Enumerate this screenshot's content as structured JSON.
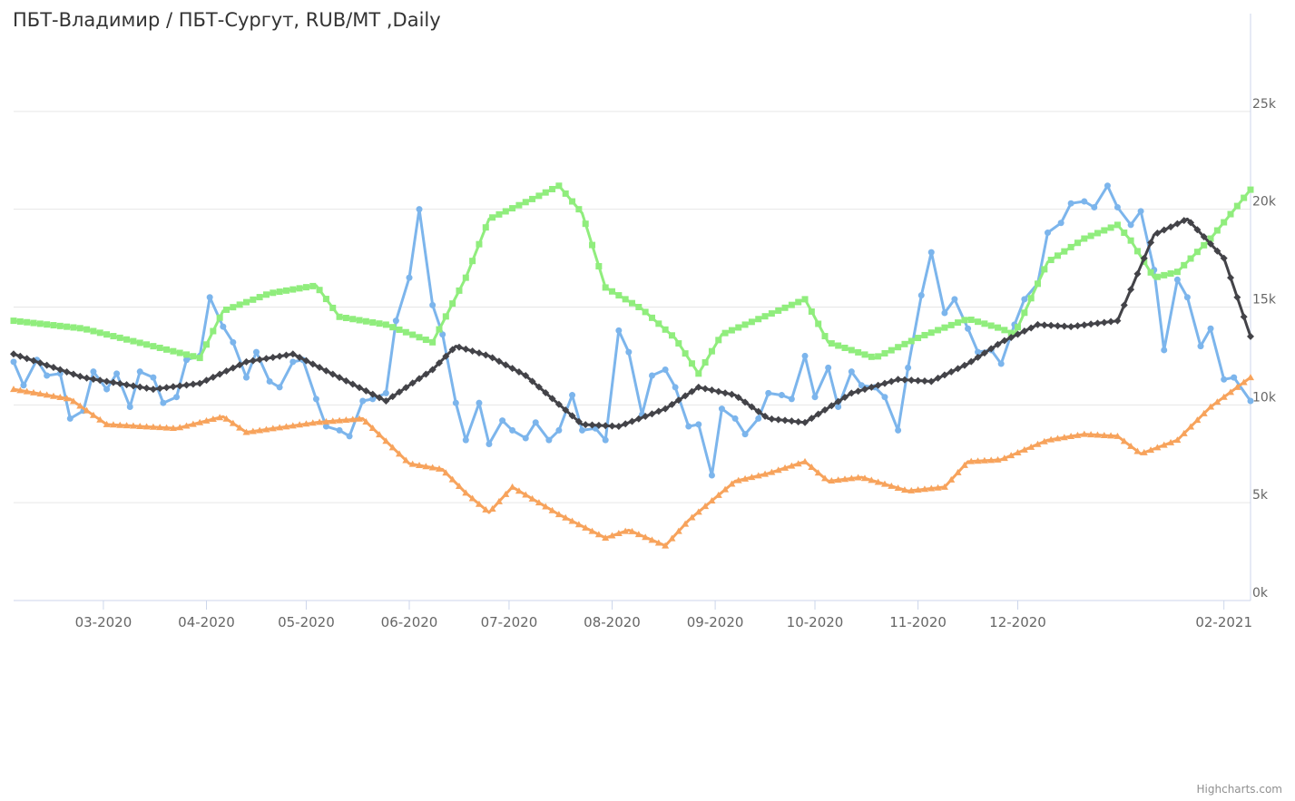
{
  "chart_data": {
    "type": "line",
    "title": "ПБТ-Владимир / ПБТ-Сургут, RUB/MT ,Daily",
    "xlabel": "",
    "ylabel": "",
    "ylim": [
      0,
      30000
    ],
    "y_ticks": [
      "0k",
      "5k",
      "10k",
      "15k",
      "20k",
      "25k"
    ],
    "y_axis_position": "right",
    "grid": true,
    "legend": "none",
    "x_range": [
      "2020-02-03",
      "2021-02-09"
    ],
    "x_ticks": [
      "03-2020",
      "04-2020",
      "05-2020",
      "06-2020",
      "07-2020",
      "08-2020",
      "09-2020",
      "10-2020",
      "11-2020",
      "12-2020",
      "02-2021"
    ],
    "series": [
      {
        "color": "#7cb5ec",
        "marker": "circle",
        "points": [
          [
            "2020-02-03",
            12200
          ],
          [
            "2020-02-06",
            11000
          ],
          [
            "2020-02-10",
            12300
          ],
          [
            "2020-02-13",
            11500
          ],
          [
            "2020-02-17",
            11600
          ],
          [
            "2020-02-20",
            9300
          ],
          [
            "2020-02-24",
            9700
          ],
          [
            "2020-02-27",
            11700
          ],
          [
            "2020-03-02",
            10800
          ],
          [
            "2020-03-05",
            11600
          ],
          [
            "2020-03-09",
            9900
          ],
          [
            "2020-03-12",
            11700
          ],
          [
            "2020-03-16",
            11400
          ],
          [
            "2020-03-19",
            10100
          ],
          [
            "2020-03-23",
            10400
          ],
          [
            "2020-03-26",
            12300
          ],
          [
            "2020-03-30",
            12500
          ],
          [
            "2020-04-02",
            15500
          ],
          [
            "2020-04-06",
            14000
          ],
          [
            "2020-04-09",
            13200
          ],
          [
            "2020-04-13",
            11400
          ],
          [
            "2020-04-16",
            12700
          ],
          [
            "2020-04-20",
            11200
          ],
          [
            "2020-04-23",
            10900
          ],
          [
            "2020-04-27",
            12200
          ],
          [
            "2020-04-30",
            12300
          ],
          [
            "2020-05-04",
            10300
          ],
          [
            "2020-05-07",
            8900
          ],
          [
            "2020-05-11",
            8700
          ],
          [
            "2020-05-14",
            8400
          ],
          [
            "2020-05-18",
            10200
          ],
          [
            "2020-05-21",
            10300
          ],
          [
            "2020-05-25",
            10600
          ],
          [
            "2020-05-28",
            14300
          ],
          [
            "2020-06-01",
            16500
          ],
          [
            "2020-06-04",
            20000
          ],
          [
            "2020-06-08",
            15100
          ],
          [
            "2020-06-11",
            13600
          ],
          [
            "2020-06-15",
            10100
          ],
          [
            "2020-06-18",
            8200
          ],
          [
            "2020-06-22",
            10100
          ],
          [
            "2020-06-25",
            8000
          ],
          [
            "2020-06-29",
            9200
          ],
          [
            "2020-07-02",
            8700
          ],
          [
            "2020-07-06",
            8300
          ],
          [
            "2020-07-09",
            9100
          ],
          [
            "2020-07-13",
            8200
          ],
          [
            "2020-07-16",
            8700
          ],
          [
            "2020-07-20",
            10500
          ],
          [
            "2020-07-23",
            8700
          ],
          [
            "2020-07-27",
            8800
          ],
          [
            "2020-07-30",
            8200
          ],
          [
            "2020-08-03",
            13800
          ],
          [
            "2020-08-06",
            12700
          ],
          [
            "2020-08-10",
            9500
          ],
          [
            "2020-08-13",
            11500
          ],
          [
            "2020-08-17",
            11800
          ],
          [
            "2020-08-20",
            10900
          ],
          [
            "2020-08-24",
            8900
          ],
          [
            "2020-08-27",
            9000
          ],
          [
            "2020-08-31",
            6400
          ],
          [
            "2020-09-03",
            9800
          ],
          [
            "2020-09-07",
            9300
          ],
          [
            "2020-09-10",
            8500
          ],
          [
            "2020-09-14",
            9300
          ],
          [
            "2020-09-17",
            10600
          ],
          [
            "2020-09-21",
            10500
          ],
          [
            "2020-09-24",
            10300
          ],
          [
            "2020-09-28",
            12500
          ],
          [
            "2020-10-01",
            10400
          ],
          [
            "2020-10-05",
            11900
          ],
          [
            "2020-10-08",
            9900
          ],
          [
            "2020-10-12",
            11700
          ],
          [
            "2020-10-15",
            11000
          ],
          [
            "2020-10-19",
            10900
          ],
          [
            "2020-10-22",
            10400
          ],
          [
            "2020-10-26",
            8700
          ],
          [
            "2020-10-29",
            11900
          ],
          [
            "2020-11-02",
            15600
          ],
          [
            "2020-11-05",
            17800
          ],
          [
            "2020-11-09",
            14700
          ],
          [
            "2020-11-12",
            15400
          ],
          [
            "2020-11-16",
            13900
          ],
          [
            "2020-11-19",
            12700
          ],
          [
            "2020-11-23",
            12800
          ],
          [
            "2020-11-26",
            12100
          ],
          [
            "2020-11-30",
            14100
          ],
          [
            "2020-12-03",
            15400
          ],
          [
            "2020-12-07",
            16200
          ],
          [
            "2020-12-10",
            18800
          ],
          [
            "2020-12-14",
            19300
          ],
          [
            "2020-12-17",
            20300
          ],
          [
            "2020-12-21",
            20400
          ],
          [
            "2020-12-24",
            20100
          ],
          [
            "2020-12-28",
            21200
          ],
          [
            "2020-12-31",
            20100
          ],
          [
            "2021-01-04",
            19200
          ],
          [
            "2021-01-07",
            19900
          ],
          [
            "2021-01-11",
            16900
          ],
          [
            "2021-01-14",
            12800
          ],
          [
            "2021-01-18",
            16400
          ],
          [
            "2021-01-21",
            15500
          ],
          [
            "2021-01-25",
            13000
          ],
          [
            "2021-01-28",
            13900
          ],
          [
            "2021-02-01",
            11300
          ],
          [
            "2021-02-04",
            11400
          ],
          [
            "2021-02-09",
            10200
          ]
        ]
      },
      {
        "color": "#90ed7d",
        "marker": "square",
        "points": [
          [
            "2020-02-03",
            14300
          ],
          [
            "2020-02-24",
            13900
          ],
          [
            "2020-03-16",
            13000
          ],
          [
            "2020-03-30",
            12400
          ],
          [
            "2020-04-06",
            14800
          ],
          [
            "2020-04-20",
            15700
          ],
          [
            "2020-05-04",
            16100
          ],
          [
            "2020-05-11",
            14500
          ],
          [
            "2020-05-25",
            14100
          ],
          [
            "2020-06-08",
            13200
          ],
          [
            "2020-06-18",
            16500
          ],
          [
            "2020-06-25",
            19500
          ],
          [
            "2020-07-09",
            20600
          ],
          [
            "2020-07-16",
            21200
          ],
          [
            "2020-07-23",
            19800
          ],
          [
            "2020-07-30",
            16000
          ],
          [
            "2020-08-10",
            14900
          ],
          [
            "2020-08-20",
            13400
          ],
          [
            "2020-08-27",
            11600
          ],
          [
            "2020-09-03",
            13600
          ],
          [
            "2020-09-17",
            14600
          ],
          [
            "2020-09-28",
            15400
          ],
          [
            "2020-10-05",
            13200
          ],
          [
            "2020-10-19",
            12400
          ],
          [
            "2020-11-02",
            13500
          ],
          [
            "2020-11-16",
            14400
          ],
          [
            "2020-11-26",
            13900
          ],
          [
            "2020-11-30",
            13600
          ],
          [
            "2020-12-10",
            17300
          ],
          [
            "2020-12-21",
            18500
          ],
          [
            "2020-12-31",
            19200
          ],
          [
            "2021-01-04",
            18400
          ],
          [
            "2021-01-11",
            16500
          ],
          [
            "2021-01-18",
            16800
          ],
          [
            "2021-01-28",
            18500
          ],
          [
            "2021-02-09",
            21000
          ]
        ]
      },
      {
        "color": "#f7a35c",
        "marker": "triangle",
        "points": [
          [
            "2020-02-03",
            10800
          ],
          [
            "2020-02-20",
            10300
          ],
          [
            "2020-03-02",
            9000
          ],
          [
            "2020-03-23",
            8800
          ],
          [
            "2020-04-06",
            9400
          ],
          [
            "2020-04-13",
            8600
          ],
          [
            "2020-05-04",
            9100
          ],
          [
            "2020-05-18",
            9300
          ],
          [
            "2020-06-01",
            7000
          ],
          [
            "2020-06-11",
            6700
          ],
          [
            "2020-06-18",
            5500
          ],
          [
            "2020-06-25",
            4500
          ],
          [
            "2020-07-02",
            5800
          ],
          [
            "2020-07-16",
            4400
          ],
          [
            "2020-07-30",
            3200
          ],
          [
            "2020-08-06",
            3600
          ],
          [
            "2020-08-17",
            2800
          ],
          [
            "2020-08-24",
            4100
          ],
          [
            "2020-09-07",
            6100
          ],
          [
            "2020-09-17",
            6500
          ],
          [
            "2020-09-28",
            7100
          ],
          [
            "2020-10-05",
            6100
          ],
          [
            "2020-10-15",
            6300
          ],
          [
            "2020-10-29",
            5600
          ],
          [
            "2020-11-09",
            5800
          ],
          [
            "2020-11-16",
            7100
          ],
          [
            "2020-11-26",
            7200
          ],
          [
            "2020-12-10",
            8200
          ],
          [
            "2020-12-21",
            8500
          ],
          [
            "2020-12-31",
            8400
          ],
          [
            "2021-01-07",
            7500
          ],
          [
            "2021-01-18",
            8200
          ],
          [
            "2021-01-28",
            9900
          ],
          [
            "2021-02-09",
            11400
          ]
        ]
      },
      {
        "color": "#434348",
        "marker": "diamond",
        "points": [
          [
            "2020-02-03",
            12600
          ],
          [
            "2020-02-24",
            11400
          ],
          [
            "2020-03-16",
            10800
          ],
          [
            "2020-03-30",
            11100
          ],
          [
            "2020-04-13",
            12200
          ],
          [
            "2020-04-27",
            12600
          ],
          [
            "2020-05-11",
            11400
          ],
          [
            "2020-05-25",
            10200
          ],
          [
            "2020-06-08",
            11800
          ],
          [
            "2020-06-15",
            13000
          ],
          [
            "2020-06-25",
            12500
          ],
          [
            "2020-07-06",
            11500
          ],
          [
            "2020-07-23",
            9000
          ],
          [
            "2020-08-03",
            8900
          ],
          [
            "2020-08-17",
            9800
          ],
          [
            "2020-08-27",
            10900
          ],
          [
            "2020-09-07",
            10500
          ],
          [
            "2020-09-17",
            9300
          ],
          [
            "2020-09-28",
            9100
          ],
          [
            "2020-10-12",
            10600
          ],
          [
            "2020-10-26",
            11300
          ],
          [
            "2020-11-05",
            11200
          ],
          [
            "2020-11-16",
            12100
          ],
          [
            "2020-11-26",
            13200
          ],
          [
            "2020-12-07",
            14100
          ],
          [
            "2020-12-17",
            14000
          ],
          [
            "2020-12-31",
            14300
          ],
          [
            "2021-01-11",
            18700
          ],
          [
            "2021-01-21",
            19500
          ],
          [
            "2021-02-01",
            17500
          ],
          [
            "2021-02-09",
            13500
          ]
        ]
      }
    ]
  },
  "credits": "Highcharts.com"
}
